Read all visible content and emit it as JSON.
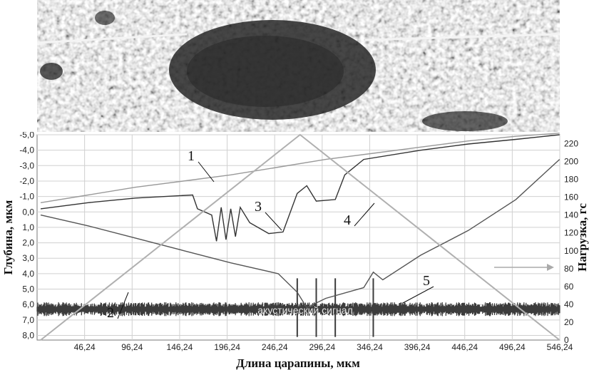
{
  "photo": {
    "description_icon": "scratch-micrograph-image"
  },
  "chart_data": {
    "type": "line",
    "xlabel": "Длина царапины, мкм",
    "ylabel_left": "Глубина, мкм",
    "ylabel_right": "Нагрузка, гс",
    "x_ticks": [
      "46,24",
      "96,24",
      "146,24",
      "196,24",
      "246,24",
      "296,24",
      "346,24",
      "396,24",
      "446,24",
      "496,24",
      "546,24"
    ],
    "y_left_ticks": [
      "-5,0",
      "-4,0",
      "-3,0",
      "-2,0",
      "-1,0",
      "0,0",
      "1,0",
      "2,0",
      "3,0",
      "4,0",
      "5,0",
      "6,0",
      "7,0",
      "8,0"
    ],
    "y_right_ticks": [
      "0",
      "20",
      "40",
      "60",
      "80",
      "100",
      "120",
      "140",
      "160",
      "180",
      "200",
      "220"
    ],
    "xlim": [
      -3.76,
      546.24
    ],
    "ylim_left": [
      -5.0,
      8.3
    ],
    "ylim_right": [
      0,
      230
    ],
    "annotation": "акустический сигнал",
    "callouts": [
      "1",
      "2",
      "3",
      "4",
      "5"
    ],
    "series": [
      {
        "id": "1",
        "axis": "left",
        "color": "#999999",
        "points": [
          [
            0,
            -0.6
          ],
          [
            50,
            -1.1
          ],
          [
            100,
            -1.6
          ],
          [
            150,
            -2.0
          ],
          [
            200,
            -2.4
          ],
          [
            250,
            -2.9
          ],
          [
            300,
            -3.4
          ],
          [
            350,
            -3.8
          ],
          [
            400,
            -4.2
          ],
          [
            450,
            -4.6
          ],
          [
            500,
            -4.9
          ],
          [
            546,
            -5.1
          ]
        ]
      },
      {
        "id": "2",
        "axis": "left",
        "color": "#555555",
        "points": [
          [
            0,
            0.2
          ],
          [
            50,
            0.9
          ],
          [
            100,
            1.7
          ],
          [
            150,
            2.5
          ],
          [
            200,
            3.3
          ],
          [
            250,
            4.0
          ],
          [
            270,
            5.2
          ],
          [
            280,
            6.2
          ],
          [
            300,
            5.6
          ],
          [
            340,
            4.9
          ],
          [
            350,
            3.9
          ],
          [
            360,
            4.4
          ],
          [
            400,
            2.8
          ],
          [
            450,
            1.2
          ],
          [
            500,
            -0.8
          ],
          [
            546,
            -3.4
          ]
        ]
      },
      {
        "id": "3",
        "axis": "left",
        "color": "#333333",
        "points": [
          [
            0,
            -0.2
          ],
          [
            50,
            -0.6
          ],
          [
            100,
            -0.9
          ],
          [
            160,
            -1.1
          ],
          [
            165,
            -0.2
          ],
          [
            180,
            0.2
          ],
          [
            185,
            1.9
          ],
          [
            190,
            -0.3
          ],
          [
            195,
            1.8
          ],
          [
            200,
            -0.2
          ],
          [
            205,
            1.6
          ],
          [
            210,
            -0.3
          ],
          [
            220,
            0.7
          ],
          [
            240,
            1.4
          ],
          [
            255,
            1.3
          ],
          [
            270,
            -1.2
          ],
          [
            280,
            -1.7
          ],
          [
            290,
            -0.7
          ],
          [
            310,
            -0.8
          ],
          [
            320,
            -2.4
          ],
          [
            340,
            -3.4
          ],
          [
            400,
            -4.0
          ],
          [
            450,
            -4.4
          ],
          [
            500,
            -4.7
          ],
          [
            546,
            -5.0
          ]
        ]
      },
      {
        "id": "4",
        "axis": "right",
        "color": "#b0b0b0",
        "points": [
          [
            0,
            0
          ],
          [
            273,
            230
          ],
          [
            546,
            0
          ]
        ]
      }
    ],
    "acoustic_signal": {
      "axis": "left",
      "center": 6.3,
      "amplitude": 0.3,
      "spikes_x": [
        270,
        290,
        310,
        350
      ]
    }
  }
}
